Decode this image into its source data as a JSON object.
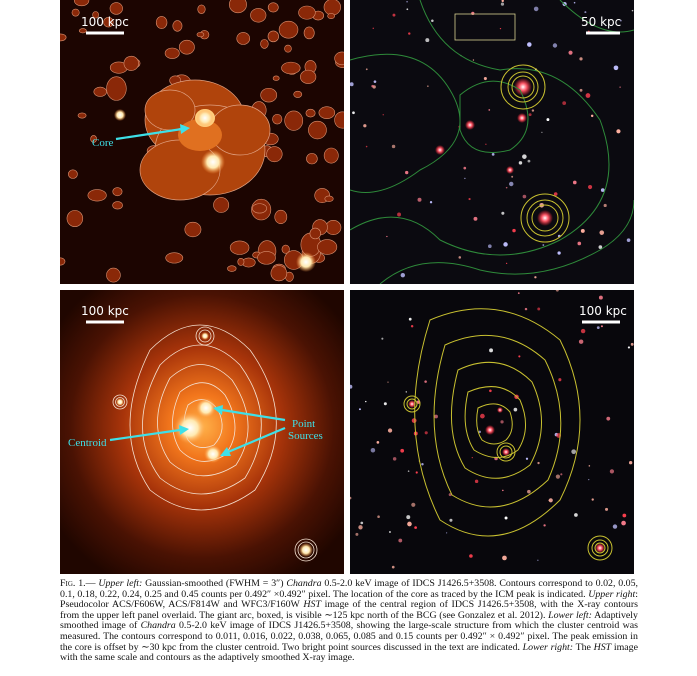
{
  "panels": [
    {
      "scale_label": "100 kpc"
    },
    {
      "scale_label": "50 kpc"
    },
    {
      "scale_label": "100 kpc"
    },
    {
      "scale_label": "100 kpc"
    }
  ],
  "annotations": {
    "core": "Core",
    "centroid": "Centroid",
    "point_sources": [
      "Point",
      "Sources"
    ]
  },
  "caption": [
    {
      "text": "Fig. 1.",
      "style": "smallcaps"
    },
    {
      "text": "— ",
      "style": "normal"
    },
    {
      "text": "Upper left:",
      "style": "italic"
    },
    {
      "text": " Gaussian-smoothed (FWHM = 3″) ",
      "style": "normal"
    },
    {
      "text": "Chandra",
      "style": "italic"
    },
    {
      "text": " 0.5-2.0 keV image of IDCS J1426.5+3508. Contours correspond to 0.02, 0.05, 0.1, 0.18, 0.22, 0.24, 0.25 and 0.45 counts per 0.492″ ×0.492″ pixel. The location of the core as traced by the ICM peak is indicated. ",
      "style": "normal"
    },
    {
      "text": "Upper right",
      "style": "italic"
    },
    {
      "text": ": Pseudocolor ACS/F606W, ACS/F814W and WFC3/F160W ",
      "style": "normal"
    },
    {
      "text": "HST",
      "style": "italic"
    },
    {
      "text": " image of the central region of IDCS J1426.5+3508, with the X-ray contours from the upper left panel overlaid. The giant arc, boxed, is visible ∼125 kpc north of the BCG (see Gonzalez et al. 2012). ",
      "style": "normal"
    },
    {
      "text": "Lower left:",
      "style": "italic"
    },
    {
      "text": " Adaptively smoothed image of ",
      "style": "normal"
    },
    {
      "text": "Chandra",
      "style": "italic"
    },
    {
      "text": " 0.5-2.0 keV image of IDCS J1426.5+3508, showing the large-scale structure from which the cluster centroid was measured. The contours correspond to 0.011, 0.016, 0.022, 0.038, 0.065, 0.085 and 0.15 counts per 0.492″ × 0.492″ pixel. The peak emission in the core is offset by ∼30 kpc from the cluster centroid. Two bright point sources discussed in the text are indicated. ",
      "style": "normal"
    },
    {
      "text": "Lower right:",
      "style": "italic"
    },
    {
      "text": " The ",
      "style": "normal"
    },
    {
      "text": "HST",
      "style": "italic"
    },
    {
      "text": " image with the same scale and contours as the adaptively smoothed X-ray image.",
      "style": "normal"
    }
  ]
}
